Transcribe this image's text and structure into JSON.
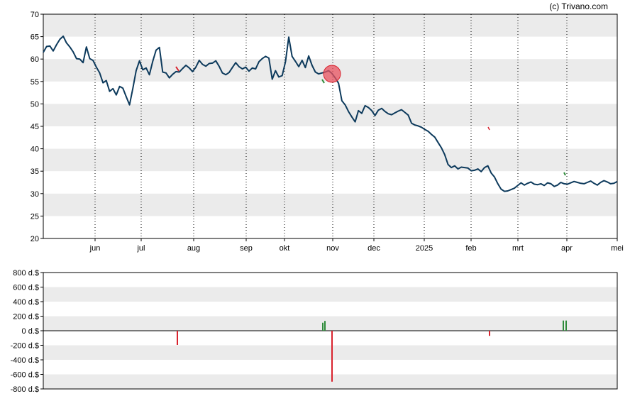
{
  "copyright": "(c) Trivano.com",
  "colors": {
    "price_line": "#0d3a5c",
    "band": "#ebebeb",
    "buy": "#2e8b3a",
    "sell": "#d9232e",
    "marker": "#e8525f"
  },
  "chart_data": [
    {
      "type": "line",
      "ylim": [
        20,
        70
      ],
      "yticks": [
        "70",
        "65",
        "60",
        "55",
        "50",
        "45",
        "40",
        "35",
        "30",
        "25",
        "20"
      ],
      "months": [
        "jun",
        "jul",
        "aug",
        "sep",
        "okt",
        "nov",
        "dec",
        "2025",
        "feb",
        "mrt",
        "apr",
        "mei"
      ],
      "grid": true,
      "series": [
        {
          "x": [
            0,
            2,
            4,
            6,
            8,
            10,
            12,
            14,
            16,
            18,
            20,
            22,
            24,
            26,
            28,
            30,
            32,
            34,
            36,
            38,
            40,
            42,
            44,
            46,
            48,
            50,
            52,
            54,
            56,
            58,
            60,
            62,
            64,
            66,
            68,
            70,
            72,
            74,
            76,
            78,
            80,
            82,
            84,
            86,
            88,
            90,
            92,
            94,
            96,
            98,
            100,
            102,
            104,
            106,
            108,
            110,
            112,
            114,
            116,
            118,
            120,
            122,
            124,
            126,
            128,
            130,
            132,
            134,
            136,
            138,
            140,
            142,
            144,
            146,
            148,
            150,
            152,
            154,
            156,
            158,
            160,
            162,
            164,
            166,
            168,
            170,
            172,
            174,
            176,
            178,
            180,
            182,
            184,
            186,
            188,
            190,
            192,
            194,
            196,
            198,
            200,
            202,
            204,
            206,
            208,
            210,
            212,
            214,
            216,
            218,
            220,
            222,
            224,
            226,
            228,
            230,
            232,
            234,
            236,
            238,
            240,
            242,
            244,
            246,
            248,
            250,
            252,
            254,
            256,
            258,
            260,
            262,
            264,
            266,
            268,
            270,
            272,
            274,
            276,
            278,
            280,
            282,
            284,
            286,
            288,
            290,
            292,
            294,
            296,
            298,
            300,
            302,
            304,
            306,
            308,
            310,
            312,
            314,
            316,
            318,
            320,
            322,
            324,
            326,
            328,
            330,
            332,
            334,
            336,
            338,
            340,
            342,
            344,
            346
          ],
          "values": [
            61.5,
            62.8,
            62.9,
            61.8,
            63.2,
            64.4,
            65.1,
            63.6,
            62.7,
            61.6,
            60.1,
            60.0,
            59.2,
            62.7,
            60.1,
            59.7,
            58.2,
            56.9,
            54.7,
            55.2,
            52.8,
            53.4,
            52.0,
            53.9,
            53.5,
            51.6,
            49.8,
            53.5,
            57.4,
            59.6,
            57.6,
            58.0,
            56.5,
            59.5,
            62.0,
            62.6,
            57.1,
            56.9,
            55.8,
            56.6,
            57.2,
            57.1,
            57.9,
            58.6,
            58.0,
            57.2,
            58.2,
            59.7,
            58.8,
            58.4,
            59.0,
            59.1,
            59.6,
            58.4,
            56.9,
            56.5,
            57.0,
            58.1,
            59.2,
            58.3,
            57.8,
            58.2,
            57.3,
            58.0,
            57.8,
            59.4,
            60.1,
            60.6,
            60.2,
            55.5,
            57.4,
            56.0,
            56.3,
            59.4,
            64.9,
            60.6,
            59.5,
            58.3,
            59.7,
            58.1,
            60.7,
            58.6,
            57.1,
            56.7,
            56.9,
            57.1,
            57.4,
            56.8,
            55.8,
            54.6,
            50.7,
            49.8,
            48.3,
            47.1,
            46.0,
            48.5,
            47.9,
            49.6,
            49.2,
            48.5,
            47.4,
            48.6,
            49.0,
            48.3,
            47.8,
            47.6,
            48.0,
            48.4,
            48.7,
            48.1,
            47.5,
            45.7,
            45.3,
            45.1,
            44.8,
            44.3,
            43.9,
            43.2,
            42.6,
            41.4,
            40.2,
            38.7,
            36.5,
            35.8,
            36.2,
            35.5,
            35.9,
            35.8,
            35.7,
            35.1,
            35.2,
            35.5,
            34.9,
            35.8,
            36.2,
            34.6,
            33.7,
            32.2,
            31.0,
            30.5,
            30.6,
            30.9,
            31.2,
            31.8,
            32.4,
            31.9,
            32.3,
            32.6,
            32.1,
            32.0,
            32.2,
            31.8,
            32.4,
            32.2,
            31.6,
            31.9,
            32.5,
            32.2,
            32.1,
            32.4,
            32.7,
            32.5,
            32.3,
            32.2,
            32.5,
            32.8,
            32.3,
            31.9,
            32.5,
            32.9,
            32.6,
            32.2,
            32.3,
            32.7
          ]
        }
      ]
    },
    {
      "type": "bar",
      "ylim": [
        -800,
        800
      ],
      "yticks": [
        "800 d.$",
        "600 d.$",
        "400 d.$",
        "200 d.$",
        "0 d.$",
        "-200 d.$",
        "-400 d.$",
        "-600 d.$",
        "-800 d.$"
      ],
      "grid": true,
      "series": [
        {
          "values": [
            -195,
            110,
            135,
            -700,
            -70,
            140,
            140
          ]
        }
      ]
    }
  ]
}
